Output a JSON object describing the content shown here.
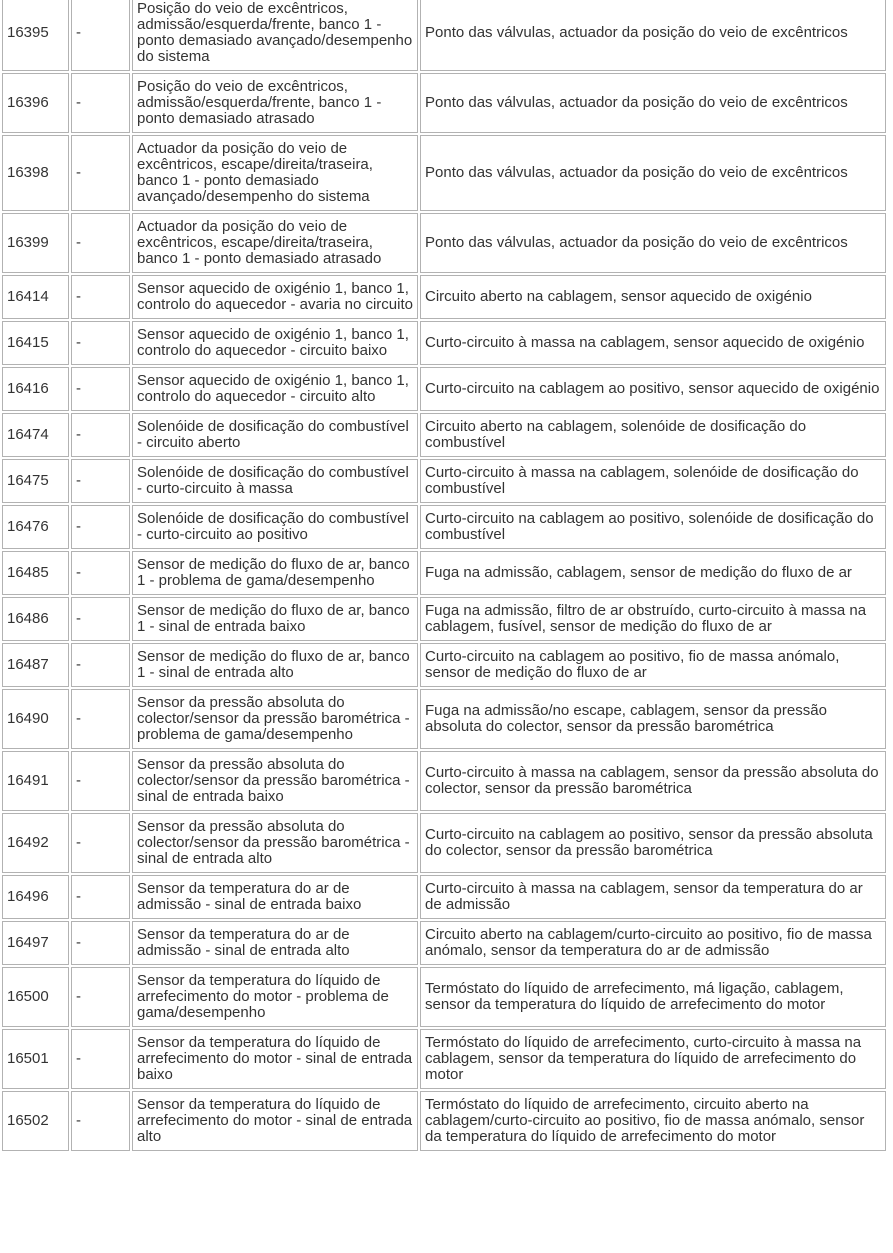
{
  "page": {
    "background_color": "#ffffff",
    "text_color": "#333333",
    "border_color": "#b2b2b2"
  },
  "table": {
    "description": "Diagnostic trouble code table (Portuguese), cropped view: code, SAE/sub-code, fault description, possible causes",
    "columns": [
      "code",
      "sae",
      "description",
      "causes"
    ],
    "rows": [
      {
        "code": "16395",
        "sae": "-",
        "description": "Posição do veio de excêntricos, admissão/esquerda/frente, banco 1 - ponto demasiado avançado/desempenho do sistema",
        "causes": "Ponto das válvulas, actuador da posição do veio de excêntricos"
      },
      {
        "code": "16396",
        "sae": "-",
        "description": "Posição do veio de excêntricos, admissão/esquerda/frente, banco 1 - ponto demasiado atrasado",
        "causes": "Ponto das válvulas, actuador da posição do veio de excêntricos"
      },
      {
        "code": "16398",
        "sae": "-",
        "description": "Actuador da posição do veio de excêntricos, escape/direita/traseira, banco 1 - ponto demasiado avançado/desempenho do sistema",
        "causes": "Ponto das válvulas, actuador da posição do veio de excêntricos"
      },
      {
        "code": "16399",
        "sae": "-",
        "description": "Actuador da posição do veio de excêntricos, escape/direita/traseira, banco 1 - ponto demasiado atrasado",
        "causes": "Ponto das válvulas, actuador da posição do veio de excêntricos"
      },
      {
        "code": "16414",
        "sae": "-",
        "description": "Sensor aquecido de oxigénio 1, banco 1, controlo do aquecedor - avaria no circuito",
        "causes": "Circuito aberto na cablagem, sensor aquecido de oxigénio"
      },
      {
        "code": "16415",
        "sae": "-",
        "description": "Sensor aquecido de oxigénio 1, banco 1, controlo do aquecedor - circuito baixo",
        "causes": "Curto-circuito à massa na cablagem, sensor aquecido de oxigénio"
      },
      {
        "code": "16416",
        "sae": "-",
        "description": "Sensor aquecido de oxigénio 1, banco 1, controlo do aquecedor - circuito alto",
        "causes": "Curto-circuito na cablagem ao positivo, sensor aquecido de oxigénio"
      },
      {
        "code": "16474",
        "sae": "-",
        "description": "Solenóide de dosificação do combustível - circuito aberto",
        "causes": "Circuito aberto na cablagem, solenóide de dosificação do combustível"
      },
      {
        "code": "16475",
        "sae": "-",
        "description": "Solenóide de dosificação do combustível - curto-circuito à massa",
        "causes": "Curto-circuito à massa na cablagem, solenóide de dosificação do combustível"
      },
      {
        "code": "16476",
        "sae": "-",
        "description": "Solenóide de dosificação do combustível - curto-circuito ao positivo",
        "causes": "Curto-circuito na cablagem ao positivo, solenóide de dosificação do combustível"
      },
      {
        "code": "16485",
        "sae": "-",
        "description": "Sensor de medição do fluxo de ar, banco 1 - problema de gama/desempenho",
        "causes": "Fuga na admissão, cablagem, sensor de medição do fluxo de ar"
      },
      {
        "code": "16486",
        "sae": "-",
        "description": "Sensor de medição do fluxo de ar, banco 1 - sinal de entrada baixo",
        "causes": "Fuga na admissão, filtro de ar obstruído, curto-circuito à massa na cablagem, fusível, sensor de medição do fluxo de ar"
      },
      {
        "code": "16487",
        "sae": "-",
        "description": "Sensor de medição do fluxo de ar, banco 1 - sinal de entrada alto",
        "causes": "Curto-circuito na cablagem ao positivo, fio de massa anómalo, sensor de medição do fluxo de ar"
      },
      {
        "code": "16490",
        "sae": "-",
        "description": "Sensor da pressão absoluta do colector/sensor da pressão barométrica - problema de gama/desempenho",
        "causes": "Fuga na admissão/no escape, cablagem, sensor da pressão absoluta do colector, sensor da pressão barométrica"
      },
      {
        "code": "16491",
        "sae": "-",
        "description": "Sensor da pressão absoluta do colector/sensor da pressão barométrica - sinal de entrada baixo",
        "causes": "Curto-circuito à massa na cablagem, sensor da pressão absoluta do colector, sensor da pressão barométrica"
      },
      {
        "code": "16492",
        "sae": "-",
        "description": "Sensor da pressão absoluta do colector/sensor da pressão barométrica - sinal de entrada alto",
        "causes": "Curto-circuito na cablagem ao positivo, sensor da pressão absoluta do colector, sensor da pressão barométrica"
      },
      {
        "code": "16496",
        "sae": "-",
        "description": "Sensor da temperatura do ar de admissão - sinal de entrada baixo",
        "causes": "Curto-circuito à massa na cablagem, sensor da temperatura do ar de admissão"
      },
      {
        "code": "16497",
        "sae": "-",
        "description": "Sensor da temperatura do ar de admissão - sinal de entrada alto",
        "causes": "Circuito aberto na cablagem/curto-circuito ao positivo, fio de massa anómalo, sensor da temperatura do ar de admissão"
      },
      {
        "code": "16500",
        "sae": "-",
        "description": "Sensor da temperatura do líquido de arrefecimento do motor - problema de gama/desempenho",
        "causes": "Termóstato do líquido de arrefecimento, má ligação, cablagem, sensor da temperatura do líquido de arrefecimento do motor"
      },
      {
        "code": "16501",
        "sae": "-",
        "description": "Sensor da temperatura do líquido de arrefecimento do motor - sinal de entrada baixo",
        "causes": "Termóstato do líquido de arrefecimento, curto-circuito à massa na cablagem, sensor da temperatura do líquido de arrefecimento do motor"
      },
      {
        "code": "16502",
        "sae": "-",
        "description": "Sensor da temperatura do líquido de arrefecimento do motor - sinal de entrada alto",
        "causes": "Termóstato do líquido de arrefecimento, circuito aberto na cablagem/curto-circuito ao positivo, fio de massa anómalo, sensor da temperatura do líquido de arrefecimento do motor"
      }
    ]
  }
}
